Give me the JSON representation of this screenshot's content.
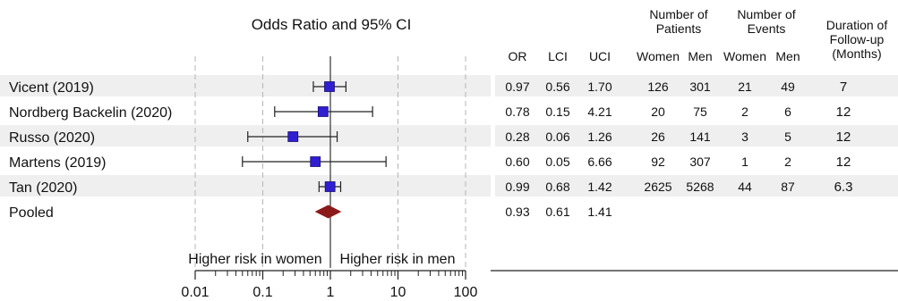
{
  "chart_data": {
    "type": "forest",
    "title": "Odds Ratio and 95% CI",
    "x_scale": "log",
    "xlim": [
      0.01,
      100
    ],
    "x_ticks": [
      "0.01",
      "0.1",
      "1",
      "10",
      "100"
    ],
    "reference_line": 1,
    "direction_left": "Higher risk in women",
    "direction_right": "Higher risk in men",
    "colors": {
      "square": "#2f1fd1",
      "diamond": "#8b1a1a",
      "stripe": "#efefef"
    },
    "columns": [
      {
        "header": "OR"
      },
      {
        "header": "LCI"
      },
      {
        "header": "UCI"
      },
      {
        "header": "Women",
        "group": "Number of Patients"
      },
      {
        "header": "Men",
        "group": "Number of Patients"
      },
      {
        "header": "Women",
        "group": "Number of Events"
      },
      {
        "header": "Men",
        "group": "Number of Events"
      },
      {
        "header": "",
        "group": "Duration of Follow-up (Months)"
      }
    ],
    "groups": [
      {
        "label": "Number of Patients",
        "lines": [
          "Number of",
          "Patients"
        ]
      },
      {
        "label": "Number of Events",
        "lines": [
          "Number of",
          "Events"
        ]
      },
      {
        "label": "Duration of Follow-up (Months)",
        "lines": [
          "Duration of",
          "Follow-up",
          "(Months)"
        ]
      }
    ],
    "studies": [
      {
        "name": "Vicent (2019)",
        "or": 0.97,
        "lci": 0.56,
        "uci": 1.7,
        "cells": [
          "0.97",
          "0.56",
          "1.70",
          "126",
          "301",
          "21",
          "49",
          "7"
        ]
      },
      {
        "name": "Nordberg Backelin (2020)",
        "or": 0.78,
        "lci": 0.15,
        "uci": 4.21,
        "cells": [
          "0.78",
          "0.15",
          "4.21",
          "20",
          "75",
          "2",
          "6",
          "12"
        ]
      },
      {
        "name": "Russo (2020)",
        "or": 0.28,
        "lci": 0.06,
        "uci": 1.26,
        "cells": [
          "0.28",
          "0.06",
          "1.26",
          "26",
          "141",
          "3",
          "5",
          "12"
        ]
      },
      {
        "name": "Martens (2019)",
        "or": 0.6,
        "lci": 0.05,
        "uci": 6.66,
        "cells": [
          "0.60",
          "0.05",
          "6.66",
          "92",
          "307",
          "1",
          "2",
          "12"
        ]
      },
      {
        "name": "Tan (2020)",
        "or": 0.99,
        "lci": 0.68,
        "uci": 1.42,
        "cells": [
          "0.99",
          "0.68",
          "1.42",
          "2625",
          "5268",
          "44",
          "87",
          "6.3"
        ]
      }
    ],
    "pooled": {
      "name": "Pooled",
      "or": 0.93,
      "lci": 0.61,
      "uci": 1.41,
      "cells": [
        "0.93",
        "0.61",
        "1.41",
        "",
        "",
        "",
        "",
        ""
      ]
    }
  }
}
